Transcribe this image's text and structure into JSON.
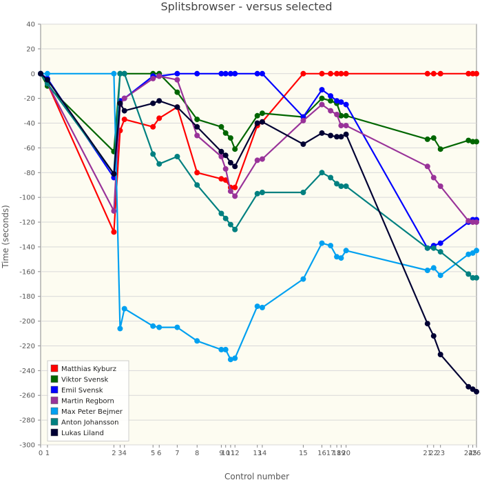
{
  "chart_data": {
    "type": "line",
    "title": "Splitsbrowser - versus selected",
    "xlabel": "Control number",
    "ylabel": "Time (seconds)",
    "ylim": [
      -300,
      40
    ],
    "ytick_step": 20,
    "x_controls": [
      0,
      1,
      2,
      3,
      4,
      5,
      6,
      7,
      8,
      9,
      10,
      11,
      12,
      13,
      14,
      15,
      16,
      17,
      18,
      19,
      20,
      21,
      22,
      23,
      24,
      25,
      26
    ],
    "x_positions": [
      0,
      1.1,
      11.8,
      12.8,
      13.5,
      18.1,
      19.1,
      22.0,
      25.2,
      29.1,
      29.8,
      30.6,
      31.3,
      34.9,
      35.7,
      42.3,
      45.3,
      46.7,
      47.7,
      48.4,
      49.2,
      62.3,
      63.3,
      64.4,
      68.9,
      69.6,
      70.2
    ],
    "x_tick_labels": [
      "0",
      "1",
      "2",
      "3",
      "4",
      "5",
      "6",
      "7",
      "8",
      "9",
      "10",
      "11",
      "12",
      "13",
      "14",
      "15",
      "16",
      "17",
      "18",
      "19",
      "20",
      "21",
      "22",
      "23",
      "24",
      "25",
      "26"
    ],
    "legend_position": "bottom-left",
    "grid": true,
    "background": "#fdfcf1",
    "series": [
      {
        "name": "Matthias Kyburz",
        "color": "#ff0000",
        "values": [
          0,
          -8,
          -128,
          -46,
          -37,
          -43,
          -36,
          -27,
          -80,
          -85,
          -86,
          -92,
          -92,
          -42,
          -39,
          0,
          0,
          0,
          0,
          0,
          0,
          0,
          0,
          0,
          0,
          0,
          0
        ]
      },
      {
        "name": "Viktor Svensk",
        "color": "#006600",
        "values": [
          0,
          -10,
          -63,
          0,
          0,
          0,
          0,
          -15,
          -37,
          -43,
          -48,
          -52,
          -61,
          -34,
          -32,
          -35,
          -20,
          -22,
          -24,
          -34,
          -34,
          -53,
          -52,
          -61,
          -54,
          -55,
          -55
        ]
      },
      {
        "name": "Emil Svensk",
        "color": "#0000ff",
        "values": [
          0,
          -4,
          -84,
          -22,
          -20,
          -2,
          -2,
          0,
          0,
          0,
          0,
          0,
          0,
          0,
          0,
          -35,
          -13,
          -18,
          -22,
          -23,
          -25,
          -141,
          -139,
          -137,
          -120,
          -118,
          -118
        ]
      },
      {
        "name": "Martin Regborn",
        "color": "#993399",
        "values": [
          0,
          -8,
          -111,
          -25,
          -20,
          -4,
          -2,
          -5,
          -50,
          -67,
          -77,
          -95,
          -99,
          -70,
          -69,
          -38,
          -25,
          -30,
          -33,
          -42,
          -42,
          -75,
          -84,
          -91,
          -119,
          -120,
          -120
        ]
      },
      {
        "name": "Max Peter Bejmer",
        "color": "#00a0f0",
        "values": [
          0,
          0,
          0,
          -206,
          -190,
          -204,
          -205,
          -205,
          -216,
          -223,
          -223,
          -231,
          -230,
          -188,
          -189,
          -166,
          -137,
          -139,
          -148,
          -149,
          -143,
          -159,
          -157,
          -163,
          -146,
          -145,
          -143
        ]
      },
      {
        "name": "Anton Johansson",
        "color": "#008080",
        "values": [
          0,
          -8,
          -81,
          0,
          0,
          -65,
          -73,
          -67,
          -90,
          -113,
          -117,
          -122,
          -126,
          -97,
          -96,
          -96,
          -80,
          -84,
          -89,
          -91,
          -91,
          -141,
          -141,
          -144,
          -162,
          -165,
          -165
        ]
      },
      {
        "name": "Lukas Liland",
        "color": "#000033",
        "values": [
          0,
          -5,
          -81,
          -24,
          -30,
          -24,
          -22,
          -27,
          -43,
          -63,
          -66,
          -72,
          -75,
          -40,
          -39,
          -57,
          -48,
          -50,
          -51,
          -51,
          -49,
          -202,
          -212,
          -227,
          -253,
          -255,
          -257
        ]
      }
    ]
  }
}
